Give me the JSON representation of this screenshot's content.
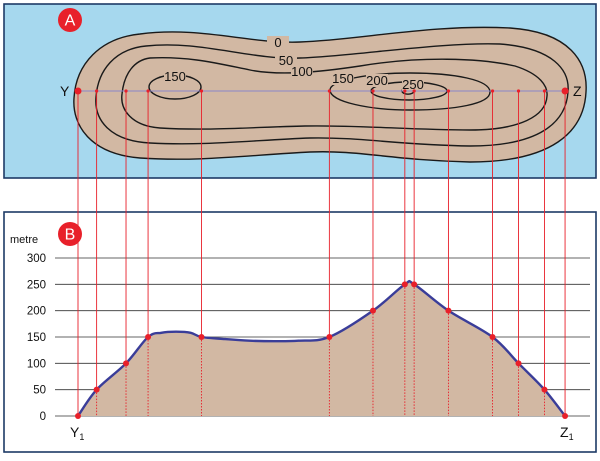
{
  "panels": {
    "a_label": "A",
    "b_label": "B"
  },
  "map": {
    "section_start": "Y",
    "section_end": "Z",
    "contour_labels": [
      "0",
      "50",
      "100",
      "150",
      "150",
      "200",
      "250"
    ]
  },
  "profile": {
    "ylabel": "metre",
    "start_label": "Y",
    "end_label": "Z",
    "subscript": "1",
    "y_ticks": [
      0,
      50,
      100,
      150,
      200,
      250,
      300
    ],
    "ylim": [
      0,
      300
    ],
    "x_range": [
      0,
      100
    ]
  },
  "chart_data": {
    "type": "area",
    "title": "",
    "xlabel": "",
    "ylabel": "metre",
    "ylim": [
      0,
      300
    ],
    "series": [
      {
        "x": [
          0,
          3.8,
          9.8,
          14.3,
          25.2,
          51.3,
          60.2,
          66.7,
          68.6,
          75.6,
          84.6,
          89.9,
          95.2,
          99.4
        ],
        "values": [
          0,
          50,
          100,
          150,
          150,
          150,
          200,
          250,
          250,
          200,
          150,
          100,
          50,
          0
        ]
      }
    ],
    "profile_curve": {
      "x": [
        0,
        3.8,
        9.8,
        14.3,
        17,
        20,
        23,
        25.2,
        30,
        35,
        40,
        45,
        51.3,
        60.2,
        66.7,
        68.6,
        75.6,
        84.6,
        89.9,
        95.2,
        99.4
      ],
      "values": [
        0,
        50,
        100,
        150,
        158,
        160,
        158,
        150,
        146,
        143,
        142,
        143,
        150,
        200,
        250,
        250,
        200,
        150,
        100,
        50,
        0
      ]
    }
  },
  "colors": {
    "water": "#a6d8ee",
    "land": "#d2b8a3",
    "contour": "#1a1a1a",
    "frame": "#1d3a66",
    "profile_line": "#3a3d99",
    "fill": "#d2b8a3",
    "guide": "#e8202a",
    "badge": "#e8202a",
    "grid": "#333333"
  }
}
